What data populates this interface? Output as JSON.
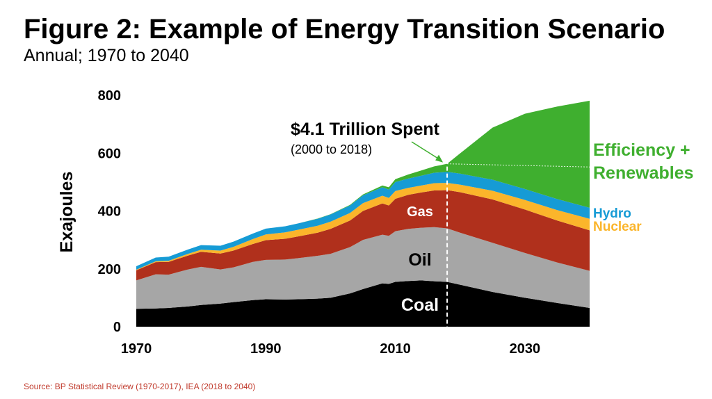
{
  "title": "Figure 2: Example of Energy Transition Scenario",
  "subtitle": "Annual; 1970 to 2040",
  "source": "Source: BP Statistical Review (1970-2017), IEA (2018 to 2040)",
  "colors": {
    "coal": "#000000",
    "oil": "#a6a6a6",
    "gas": "#b0301c",
    "nuclear": "#fbb52b",
    "hydro": "#169bd5",
    "renewables": "#3faf2f",
    "annotation_arrow": "#3faf2f",
    "divider": "#ffffff"
  },
  "chart_data": {
    "type": "area",
    "stacked": true,
    "ylabel": "Exajoules",
    "xlabel": "",
    "ylim": [
      0,
      800
    ],
    "xlim": [
      1970,
      2040
    ],
    "y_ticks": [
      0,
      200,
      400,
      600,
      800
    ],
    "x_ticks": [
      1970,
      1990,
      2010,
      2030
    ],
    "grid": false,
    "x": [
      1970,
      1973,
      1975,
      1978,
      1980,
      1983,
      1985,
      1988,
      1990,
      1993,
      1995,
      1998,
      2000,
      2003,
      2005,
      2008,
      2009,
      2010,
      2012,
      2014,
      2016,
      2018,
      2020,
      2025,
      2030,
      2035,
      2040
    ],
    "series": [
      {
        "name": "Coal",
        "values": [
          62,
          63,
          65,
          70,
          75,
          80,
          85,
          92,
          95,
          94,
          95,
          97,
          100,
          115,
          130,
          150,
          148,
          155,
          158,
          160,
          157,
          155,
          145,
          120,
          100,
          82,
          65
        ]
      },
      {
        "name": "Oil",
        "values": [
          98,
          118,
          115,
          128,
          132,
          118,
          120,
          132,
          136,
          138,
          142,
          148,
          152,
          160,
          170,
          168,
          166,
          175,
          180,
          182,
          187,
          185,
          180,
          170,
          155,
          140,
          128
        ]
      },
      {
        "name": "Gas",
        "values": [
          35,
          42,
          44,
          48,
          52,
          55,
          58,
          62,
          68,
          72,
          75,
          80,
          86,
          92,
          100,
          108,
          105,
          112,
          118,
          122,
          127,
          132,
          140,
          150,
          150,
          145,
          140
        ]
      },
      {
        "name": "Nuclear",
        "values": [
          2,
          3,
          4,
          6,
          7,
          10,
          13,
          17,
          20,
          22,
          23,
          24,
          25,
          26,
          27,
          27,
          26,
          27,
          24,
          24,
          25,
          25,
          26,
          30,
          33,
          36,
          40
        ]
      },
      {
        "name": "Hydro",
        "values": [
          12,
          13,
          14,
          15,
          16,
          17,
          18,
          19,
          20,
          21,
          22,
          24,
          25,
          26,
          27,
          29,
          29,
          31,
          32,
          34,
          36,
          38,
          38,
          38,
          38,
          38,
          38
        ]
      },
      {
        "name": "Efficiency + Renewables",
        "values": [
          0,
          0,
          0,
          0,
          0,
          0,
          0,
          0,
          0,
          0,
          0,
          1,
          1,
          2,
          3,
          6,
          8,
          10,
          14,
          18,
          22,
          28,
          70,
          180,
          260,
          320,
          370
        ]
      }
    ],
    "inline_labels": {
      "coal": "Coal",
      "oil": "Oil",
      "gas": "Gas",
      "efficiency": "Efficiency +",
      "renewables": "Renewables",
      "hydro": "Hydro",
      "nuclear": "Nuclear"
    },
    "annotation": {
      "headline": "$4.1 Trillion Spent",
      "detail": "(2000 to 2018)",
      "year": 2018
    }
  }
}
